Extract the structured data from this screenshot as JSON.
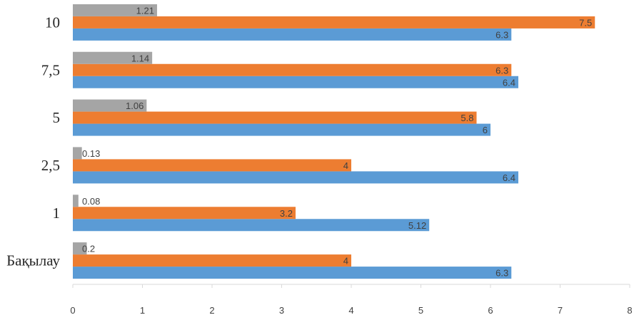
{
  "chart_data": {
    "type": "bar",
    "orientation": "horizontal",
    "title": "",
    "xlabel": "",
    "ylabel": "",
    "xlim": [
      0,
      8
    ],
    "x_ticks": [
      0,
      1,
      2,
      3,
      4,
      5,
      6,
      7,
      8
    ],
    "grid": false,
    "legend": "none",
    "categories": [
      "Бақылау",
      "1",
      "2,5",
      "5",
      "7,5",
      "10"
    ],
    "series": [
      {
        "name": "series-1",
        "color": "#5b9bd5",
        "values": [
          6.3,
          5.12,
          6.4,
          6,
          6.4,
          6.3
        ],
        "labels": [
          "6.3",
          "5.12",
          "6.4",
          "6",
          "6.4",
          "6.3"
        ]
      },
      {
        "name": "series-2",
        "color": "#ed7d31",
        "values": [
          4,
          3.2,
          4,
          5.8,
          6.3,
          7.5
        ],
        "labels": [
          "4",
          "3.2",
          "4",
          "5.8",
          "6.3",
          "7.5"
        ]
      },
      {
        "name": "series-3",
        "color": "#a5a5a5",
        "values": [
          0.2,
          0.08,
          0.13,
          1.06,
          1.14,
          1.21
        ],
        "labels": [
          "0.2",
          "0.08",
          "0.13",
          "1.06",
          "1.14",
          "1.21"
        ]
      }
    ]
  }
}
